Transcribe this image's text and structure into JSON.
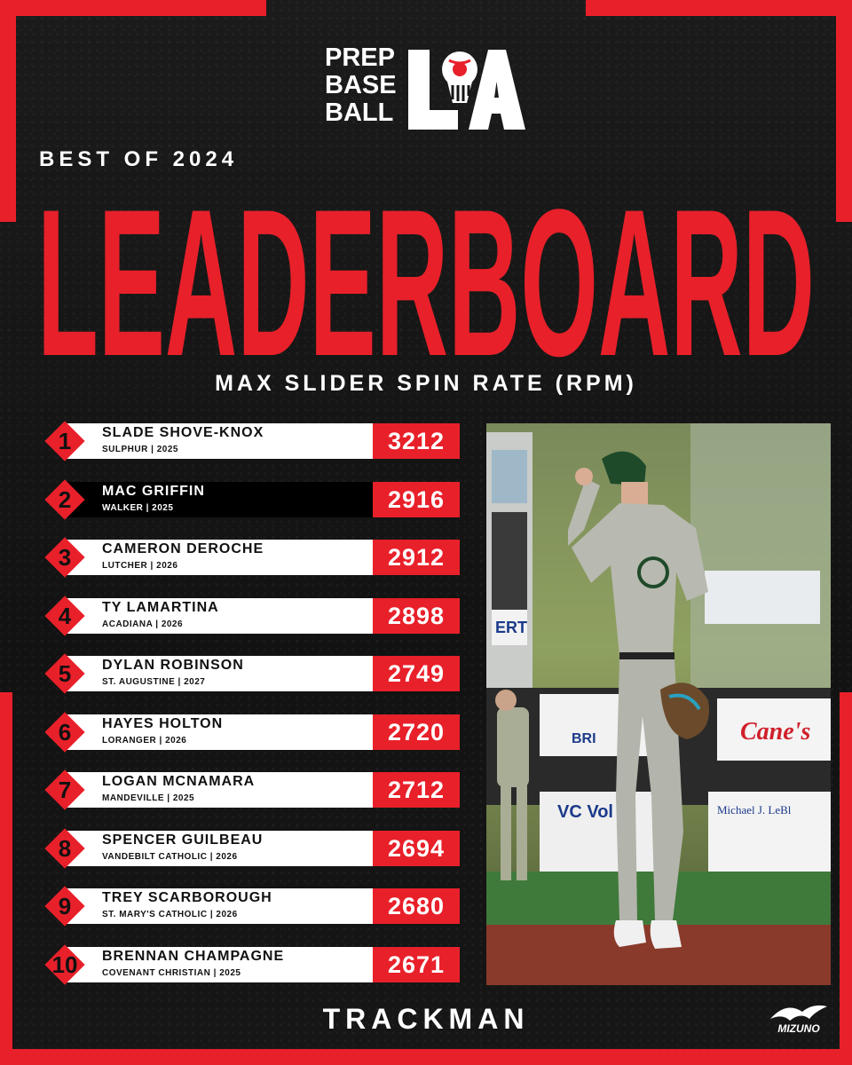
{
  "brand": {
    "line1": "PREP",
    "line2": "BASE",
    "line3": "BALL",
    "region": "LA"
  },
  "header": {
    "kicker": "BEST OF 2024",
    "title": "LEADERBOARD",
    "subtitle": "MAX SLIDER SPIN RATE (RPM)"
  },
  "leaders": [
    {
      "rank": "1",
      "name": "SLADE SHOVE-KNOX",
      "meta": "SULPHUR | 2025",
      "value": "3212"
    },
    {
      "rank": "2",
      "name": "MAC GRIFFIN",
      "meta": "WALKER | 2025",
      "value": "2916"
    },
    {
      "rank": "3",
      "name": "CAMERON DEROCHE",
      "meta": "LUTCHER | 2026",
      "value": "2912"
    },
    {
      "rank": "4",
      "name": "TY LAMARTINA",
      "meta": "ACADIANA | 2026",
      "value": "2898"
    },
    {
      "rank": "5",
      "name": "DYLAN ROBINSON",
      "meta": "ST. AUGUSTINE | 2027",
      "value": "2749"
    },
    {
      "rank": "6",
      "name": "HAYES HOLTON",
      "meta": "LORANGER | 2026",
      "value": "2720"
    },
    {
      "rank": "7",
      "name": "LOGAN MCNAMARA",
      "meta": "MANDEVILLE | 2025",
      "value": "2712"
    },
    {
      "rank": "8",
      "name": "SPENCER GUILBEAU",
      "meta": "VANDEBILT CATHOLIC | 2026",
      "value": "2694"
    },
    {
      "rank": "9",
      "name": "TREY SCARBOROUGH",
      "meta": "ST. MARY'S CATHOLIC | 2026",
      "value": "2680"
    },
    {
      "rank": "10",
      "name": "BRENNAN CHAMPAGNE",
      "meta": "COVENANT CHRISTIAN | 2025",
      "value": "2671"
    }
  ],
  "highlight_rank": "2",
  "photo": {
    "icon": "pitcher-photo",
    "signage": [
      "Cane's",
      "Michael J. LeBl",
      "VC Vol",
      "BRI",
      "ERT"
    ]
  },
  "footer": {
    "sponsor": "TRACKMAN",
    "sponsor2": "MIZUNO"
  },
  "colors": {
    "accent": "#e8202a",
    "background": "#141414",
    "bar": "#ffffff",
    "text_dark": "#111111"
  }
}
